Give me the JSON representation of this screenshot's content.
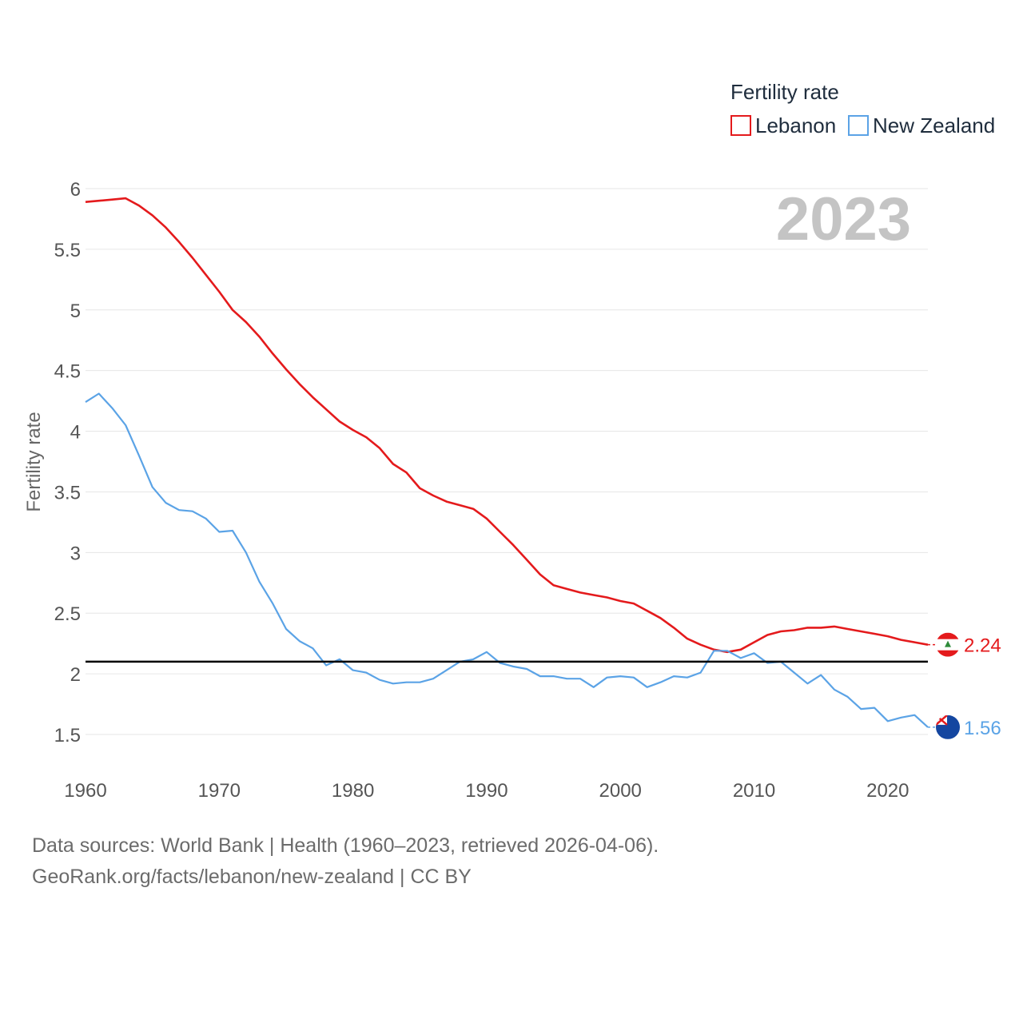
{
  "chart_data": {
    "type": "line",
    "legend_title": "Fertility rate",
    "ylabel": "Fertility rate",
    "year_label": "2023",
    "ylim": [
      1.3,
      6.0
    ],
    "xlim": [
      1960,
      2023
    ],
    "yticks": [
      1.5,
      2,
      2.5,
      3,
      3.5,
      4,
      4.5,
      5,
      5.5,
      6
    ],
    "ytick_labels": [
      "1.5",
      "2",
      "2.5",
      "3",
      "3.5",
      "4",
      "4.5",
      "5",
      "5.5",
      "6"
    ],
    "xticks": [
      1960,
      1970,
      1980,
      1990,
      2000,
      2010,
      2020
    ],
    "xtick_labels": [
      "1960",
      "1970",
      "1980",
      "1990",
      "2000",
      "2010",
      "2020"
    ],
    "reference_line": 2.1,
    "series": [
      {
        "name": "Lebanon",
        "color": "#e41a1c",
        "end_label": "2.24",
        "x": [
          1960,
          1961,
          1962,
          1963,
          1964,
          1965,
          1966,
          1967,
          1968,
          1969,
          1970,
          1971,
          1972,
          1973,
          1974,
          1975,
          1976,
          1977,
          1978,
          1979,
          1980,
          1981,
          1982,
          1983,
          1984,
          1985,
          1986,
          1987,
          1988,
          1989,
          1990,
          1991,
          1992,
          1993,
          1994,
          1995,
          1996,
          1997,
          1998,
          1999,
          2000,
          2001,
          2002,
          2003,
          2004,
          2005,
          2006,
          2007,
          2008,
          2009,
          2010,
          2011,
          2012,
          2013,
          2014,
          2015,
          2016,
          2017,
          2018,
          2019,
          2020,
          2021,
          2022,
          2023
        ],
        "values": [
          5.89,
          5.9,
          5.91,
          5.92,
          5.86,
          5.78,
          5.68,
          5.56,
          5.43,
          5.29,
          5.15,
          5.0,
          4.9,
          4.78,
          4.64,
          4.51,
          4.39,
          4.28,
          4.18,
          4.08,
          4.01,
          3.95,
          3.86,
          3.73,
          3.66,
          3.53,
          3.47,
          3.42,
          3.39,
          3.36,
          3.28,
          3.17,
          3.06,
          2.94,
          2.82,
          2.73,
          2.7,
          2.67,
          2.65,
          2.63,
          2.6,
          2.58,
          2.52,
          2.46,
          2.38,
          2.29,
          2.24,
          2.2,
          2.18,
          2.2,
          2.26,
          2.32,
          2.35,
          2.36,
          2.38,
          2.38,
          2.39,
          2.37,
          2.35,
          2.33,
          2.31,
          2.28,
          2.26,
          2.24
        ]
      },
      {
        "name": "New Zealand",
        "color": "#5ba3e6",
        "end_label": "1.56",
        "x": [
          1960,
          1961,
          1962,
          1963,
          1964,
          1965,
          1966,
          1967,
          1968,
          1969,
          1970,
          1971,
          1972,
          1973,
          1974,
          1975,
          1976,
          1977,
          1978,
          1979,
          1980,
          1981,
          1982,
          1983,
          1984,
          1985,
          1986,
          1987,
          1988,
          1989,
          1990,
          1991,
          1992,
          1993,
          1994,
          1995,
          1996,
          1997,
          1998,
          1999,
          2000,
          2001,
          2002,
          2003,
          2004,
          2005,
          2006,
          2007,
          2008,
          2009,
          2010,
          2011,
          2012,
          2013,
          2014,
          2015,
          2016,
          2017,
          2018,
          2019,
          2020,
          2021,
          2022,
          2023
        ],
        "values": [
          4.24,
          4.31,
          4.19,
          4.05,
          3.8,
          3.54,
          3.41,
          3.35,
          3.34,
          3.28,
          3.17,
          3.18,
          3.0,
          2.76,
          2.58,
          2.37,
          2.27,
          2.21,
          2.07,
          2.12,
          2.03,
          2.01,
          1.95,
          1.92,
          1.93,
          1.93,
          1.96,
          2.03,
          2.1,
          2.12,
          2.18,
          2.09,
          2.06,
          2.04,
          1.98,
          1.98,
          1.96,
          1.96,
          1.89,
          1.97,
          1.98,
          1.97,
          1.89,
          1.93,
          1.98,
          1.97,
          2.01,
          2.19,
          2.19,
          2.13,
          2.17,
          2.09,
          2.1,
          2.01,
          1.92,
          1.99,
          1.87,
          1.81,
          1.71,
          1.72,
          1.61,
          1.64,
          1.66,
          1.56
        ]
      }
    ]
  },
  "footer": {
    "line1": "Data sources: World Bank | Health (1960–2023, retrieved 2026-04-06).",
    "line2": "GeoRank.org/facts/lebanon/new-zealand | CC BY"
  }
}
